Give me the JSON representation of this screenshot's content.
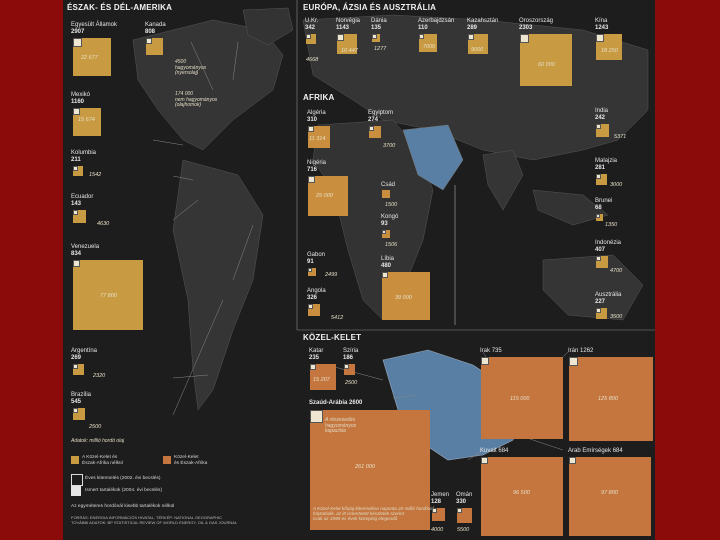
{
  "sections": {
    "americas": "ÉSZAK- ÉS DÉL-AMERIKA",
    "eurasia": "EURÓPA, ÁZSIA ÉS AUSZTRÁLIA",
    "africa": "AFRIKA",
    "mideast": "KÖZEL-KELET"
  },
  "americas": {
    "us": {
      "name": "Egyesült Államok",
      "prod": "2907",
      "res": "22 677"
    },
    "canada": {
      "name": "Kanada",
      "prod": "808",
      "res": "4500"
    },
    "canada_note": "4500\nhagyományos\n(nyersolaj)",
    "canada_note2": "174 000\nnem hagyományos\n(olajhomok)",
    "mexico": {
      "name": "Mexikó",
      "prod": "1160",
      "res": "15 674"
    },
    "colombia": {
      "name": "Kolumbia",
      "prod": "211",
      "res": "1542"
    },
    "ecuador": {
      "name": "Ecuador",
      "prod": "143",
      "res": "4630"
    },
    "venezuela": {
      "name": "Venezuela",
      "prod": "834",
      "res": "77 800"
    },
    "argentina": {
      "name": "Argentína",
      "prod": "269",
      "res": "2320"
    },
    "brazil": {
      "name": "Brazília",
      "prod": "545",
      "res": "2500"
    }
  },
  "eurasia": {
    "uk": {
      "name": "U.Kr.",
      "prod": "342",
      "res": "4668"
    },
    "norway": {
      "name": "Norvégia",
      "prod": "1143",
      "res": "10 447"
    },
    "denmark": {
      "name": "Dánia",
      "prod": "135",
      "res": "1277"
    },
    "azerbaijan": {
      "name": "Azerbajdzsán",
      "prod": "110",
      "res": "7000"
    },
    "kazakhstan": {
      "name": "Kazahsztán",
      "prod": "289",
      "res": "9000"
    },
    "russia": {
      "name": "Oroszország",
      "prod": "2303",
      "res": "60 000"
    },
    "china": {
      "name": "Kína",
      "prod": "1243",
      "res": "18 250"
    },
    "india": {
      "name": "India",
      "prod": "242",
      "res": "5371"
    },
    "malaysia": {
      "name": "Malajzia",
      "prod": "281",
      "res": "3000"
    },
    "brunei": {
      "name": "Brunei",
      "prod": "68",
      "res": "1350"
    },
    "indonesia": {
      "name": "Indonézia",
      "prod": "407",
      "res": "4700"
    },
    "australia": {
      "name": "Ausztrália",
      "prod": "227",
      "res": "3500"
    }
  },
  "africa": {
    "algeria": {
      "name": "Algéria",
      "prod": "310",
      "res": "11 314"
    },
    "egypt": {
      "name": "Egyiptom",
      "prod": "274",
      "res": "3700"
    },
    "nigeria": {
      "name": "Nigéria",
      "prod": "716",
      "res": "25 000"
    },
    "chad": {
      "name": "Csád",
      "prod": "",
      "res": "1500"
    },
    "congo": {
      "name": "Kongó",
      "prod": "93",
      "res": "1506"
    },
    "gabon": {
      "name": "Gabon",
      "prod": "91",
      "res": "2499"
    },
    "libya": {
      "name": "Líbia",
      "prod": "480",
      "res": "39 000"
    },
    "angola": {
      "name": "Angola",
      "prod": "326",
      "res": "5412"
    }
  },
  "mideast": {
    "qatar": {
      "name": "Katar",
      "prod": "235",
      "res": "15 207"
    },
    "syria": {
      "name": "Szíria",
      "prod": "186",
      "res": "2500"
    },
    "iraq": {
      "name": "Irak",
      "prod": "735",
      "res": "115 000"
    },
    "iran": {
      "name": "Irán",
      "prod": "1262",
      "res": "125 800"
    },
    "saudi": {
      "name": "Szaúd-Arábia",
      "prod": "2600",
      "res": "261 000"
    },
    "saudi_note": "A részesedés\nhagyományos\nkapacitás",
    "kuwait": {
      "name": "Kuvait",
      "prod": "684",
      "res": "96 500"
    },
    "uae": {
      "name": "Arab Emírségek",
      "prod": "684",
      "res": "97 800"
    },
    "yemen": {
      "name": "Jemen",
      "prod": "128",
      "res": "4000"
    },
    "oman": {
      "name": "Omán",
      "prod": "330",
      "res": "5500"
    },
    "bottom_note": "A Közel-Kelet kőolaj-kitermelése naponta 20 millió hordóval\nfolytatódik, az itt ismertetett készletek szerint\ncsak az 1990-es évek közepéig elegendő"
  },
  "legend": {
    "unit": "Adatok: millió hordó olaj",
    "mideast_na": "A Közel-Kelet és\nÉszak-Afrika nélkül",
    "mideast_with": "Közel-Kelet\nés Észak-Afrika",
    "daily_prod": "Éves kitermelés (2002. évi becslés)",
    "reserves": "Ismert tartalékok (2004. évi becslés)",
    "world_total": "Az egyméteres hordónál kisebb tartalékok nélkül",
    "source": "FORRÁS: ENERGIA INFORMÁCIÓS HIVATAL, TÉRKÉP: NATIONAL GEOGRAPHIC\nTOVÁBBI ADATOK: BP STATISTICAL REVIEW OF WORLD ENERGY, OIL & GAS JOURNAL"
  },
  "colors": {
    "background": "#8b0b0b",
    "map_dark": "#1d1d1d",
    "land": "#3a3a3a",
    "reserve_fill": "#c89a42",
    "mideast_fill": "#c4763e",
    "highlight_region": "#5a7fa4"
  }
}
